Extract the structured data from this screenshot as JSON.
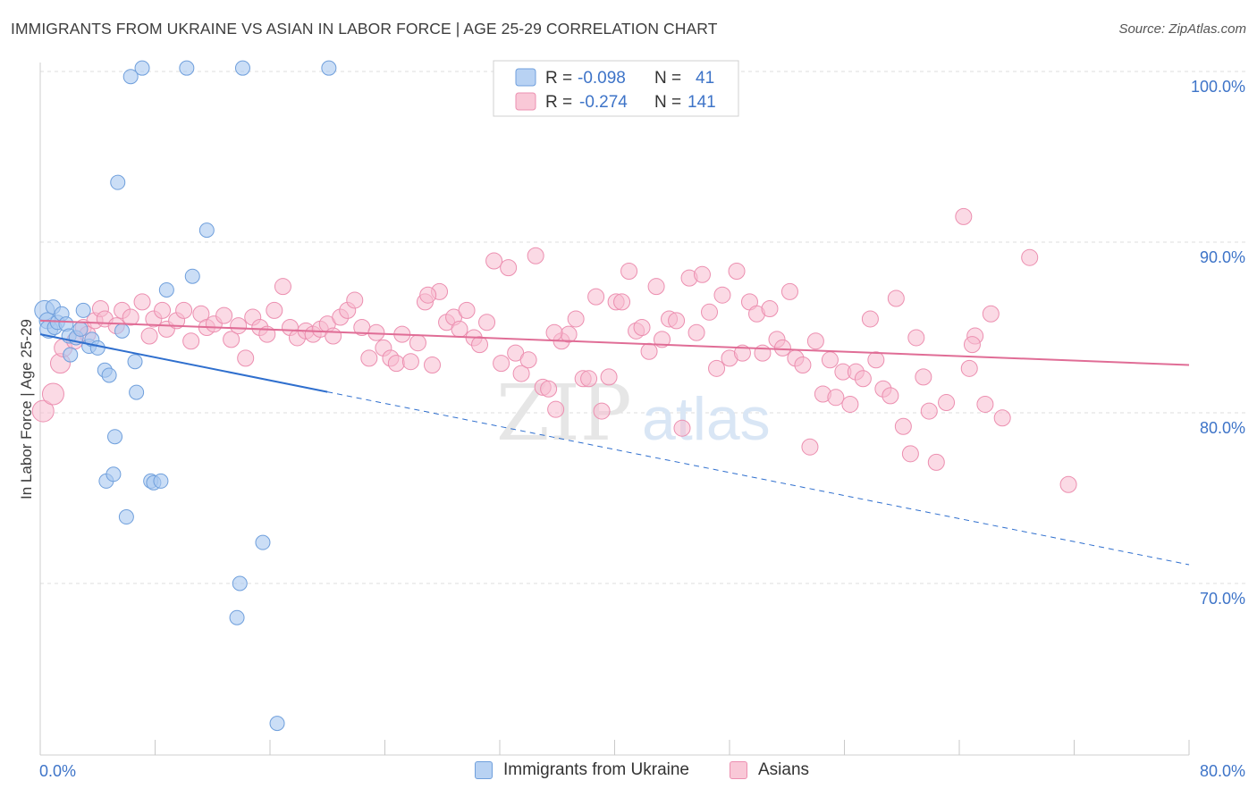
{
  "title": "IMMIGRANTS FROM UKRAINE VS ASIAN IN LABOR FORCE | AGE 25-29 CORRELATION CHART",
  "source": "Source: ZipAtlas.com",
  "watermark": {
    "zip": "ZIP",
    "atlas": "atlas"
  },
  "legend_top": {
    "rows": [
      {
        "r_label": "R =",
        "r_value": "-0.098",
        "n_label": "N =",
        "n_value": "41"
      },
      {
        "r_label": "R =",
        "r_value": "-0.274",
        "n_label": "N =",
        "n_value": "141"
      }
    ]
  },
  "legend_bottom": {
    "items": [
      "Immigrants from Ukraine",
      "Asians"
    ]
  },
  "chart_data": {
    "type": "scatter",
    "title": "IMMIGRANTS FROM UKRAINE VS ASIAN IN LABOR FORCE | AGE 25-29 CORRELATION CHART",
    "xlabel": "",
    "ylabel": "In Labor Force | Age 25-29",
    "xlim": [
      0,
      80
    ],
    "ylim": [
      61.5,
      102.5
    ],
    "x_tick_labels": [
      "0.0%",
      "80.0%"
    ],
    "y_ticks": [
      70,
      80,
      90,
      100
    ],
    "y_tick_labels": [
      "70.0%",
      "80.0%",
      "90.0%",
      "100.0%"
    ],
    "grid": true,
    "legend_placement": "top-center",
    "colors": {
      "ukraine_fill": "#a9c8f0",
      "ukraine_stroke": "#6f9fdc",
      "ukraine_line": "#2f6fce",
      "asian_fill": "#f7bcd0",
      "asian_stroke": "#ec8fb0",
      "asian_line": "#e06d96",
      "tick_text": "#3e74c8",
      "grid": "#dcdcdc"
    },
    "series": [
      {
        "name": "Immigrants from Ukraine",
        "r": -0.098,
        "n": 41,
        "trend": {
          "x0": 0,
          "y0": 84.6,
          "x_solid_end": 20,
          "x1": 80,
          "y1": 71.1
        },
        "points": [
          [
            0.3,
            86.0,
            11
          ],
          [
            0.5,
            85.4,
            9
          ],
          [
            0.6,
            84.9,
            10
          ],
          [
            0.9,
            86.2,
            8
          ],
          [
            1.0,
            85.0,
            8
          ],
          [
            1.2,
            85.3,
            8
          ],
          [
            1.5,
            85.8,
            8
          ],
          [
            1.8,
            85.2,
            8
          ],
          [
            2.0,
            84.5,
            8
          ],
          [
            2.1,
            83.4,
            8
          ],
          [
            2.5,
            84.4,
            8
          ],
          [
            2.8,
            84.9,
            8
          ],
          [
            3.0,
            86.0,
            8
          ],
          [
            3.4,
            83.9,
            8
          ],
          [
            3.6,
            84.3,
            8
          ],
          [
            4.0,
            83.8,
            8
          ],
          [
            4.5,
            82.5,
            8
          ],
          [
            4.6,
            76.0,
            8
          ],
          [
            4.8,
            82.2,
            8
          ],
          [
            5.1,
            76.4,
            8
          ],
          [
            5.2,
            78.6,
            8
          ],
          [
            5.4,
            93.5,
            8
          ],
          [
            5.7,
            84.8,
            8
          ],
          [
            6.0,
            73.9,
            8
          ],
          [
            6.3,
            99.7,
            8
          ],
          [
            6.6,
            83.0,
            8
          ],
          [
            6.7,
            81.2,
            8
          ],
          [
            7.1,
            100.2,
            8
          ],
          [
            7.7,
            76.0,
            8
          ],
          [
            7.9,
            75.9,
            8
          ],
          [
            8.4,
            76.0,
            8
          ],
          [
            8.8,
            87.2,
            8
          ],
          [
            10.2,
            100.2,
            8
          ],
          [
            10.6,
            88.0,
            8
          ],
          [
            11.6,
            90.7,
            8
          ],
          [
            13.7,
            68.0,
            8
          ],
          [
            13.9,
            70.0,
            8
          ],
          [
            14.1,
            100.2,
            8
          ],
          [
            15.5,
            72.4,
            8
          ],
          [
            16.5,
            61.8,
            8
          ],
          [
            20.1,
            100.2,
            8
          ]
        ]
      },
      {
        "name": "Asians",
        "r": -0.274,
        "n": 141,
        "trend": {
          "x0": 0,
          "y0": 85.4,
          "x1": 80,
          "y1": 82.8
        },
        "points": [
          [
            0.2,
            80.1,
            12
          ],
          [
            0.9,
            81.1,
            12
          ],
          [
            1.4,
            82.9,
            11
          ],
          [
            1.6,
            83.8,
            10
          ],
          [
            2.4,
            84.2,
            9
          ],
          [
            3.0,
            85.0,
            9
          ],
          [
            3.3,
            84.6,
            9
          ],
          [
            3.8,
            85.4,
            9
          ],
          [
            4.2,
            86.1,
            9
          ],
          [
            4.5,
            85.5,
            9
          ],
          [
            5.3,
            85.1,
            9
          ],
          [
            5.7,
            86.0,
            9
          ],
          [
            6.3,
            85.6,
            9
          ],
          [
            7.1,
            86.5,
            9
          ],
          [
            7.6,
            84.5,
            9
          ],
          [
            7.9,
            85.5,
            9
          ],
          [
            8.5,
            86.0,
            9
          ],
          [
            8.8,
            84.9,
            9
          ],
          [
            9.5,
            85.4,
            9
          ],
          [
            10.0,
            86.0,
            9
          ],
          [
            10.5,
            84.2,
            9
          ],
          [
            11.2,
            85.8,
            9
          ],
          [
            11.6,
            85.0,
            9
          ],
          [
            12.1,
            85.2,
            9
          ],
          [
            12.8,
            85.7,
            9
          ],
          [
            13.3,
            84.3,
            9
          ],
          [
            13.8,
            85.1,
            9
          ],
          [
            14.3,
            83.2,
            9
          ],
          [
            14.8,
            85.6,
            9
          ],
          [
            15.3,
            85.0,
            9
          ],
          [
            15.8,
            84.6,
            9
          ],
          [
            16.3,
            86.0,
            9
          ],
          [
            16.9,
            87.4,
            9
          ],
          [
            17.4,
            85.0,
            9
          ],
          [
            17.9,
            84.4,
            9
          ],
          [
            18.5,
            84.8,
            9
          ],
          [
            19.0,
            84.6,
            9
          ],
          [
            19.5,
            84.9,
            9
          ],
          [
            20.0,
            85.2,
            9
          ],
          [
            20.4,
            84.5,
            9
          ],
          [
            20.9,
            85.6,
            9
          ],
          [
            21.4,
            86.0,
            9
          ],
          [
            21.9,
            86.6,
            9
          ],
          [
            22.4,
            85.0,
            9
          ],
          [
            22.9,
            83.2,
            9
          ],
          [
            23.4,
            84.7,
            9
          ],
          [
            23.9,
            83.8,
            9
          ],
          [
            24.4,
            83.2,
            9
          ],
          [
            24.8,
            82.9,
            9
          ],
          [
            25.2,
            84.6,
            9
          ],
          [
            25.8,
            83.0,
            9
          ],
          [
            26.3,
            84.1,
            9
          ],
          [
            26.8,
            86.5,
            9
          ],
          [
            27.3,
            82.8,
            9
          ],
          [
            27.8,
            87.1,
            9
          ],
          [
            28.3,
            85.3,
            9
          ],
          [
            28.8,
            85.6,
            9
          ],
          [
            29.2,
            84.9,
            9
          ],
          [
            29.7,
            86.0,
            9
          ],
          [
            30.2,
            84.4,
            9
          ],
          [
            30.6,
            84.0,
            9
          ],
          [
            31.1,
            85.3,
            9
          ],
          [
            31.6,
            88.9,
            9
          ],
          [
            32.1,
            82.9,
            9
          ],
          [
            32.6,
            88.5,
            9
          ],
          [
            33.1,
            83.5,
            9
          ],
          [
            33.5,
            82.3,
            9
          ],
          [
            34.0,
            83.1,
            9
          ],
          [
            34.5,
            89.2,
            9
          ],
          [
            35.0,
            81.5,
            9
          ],
          [
            35.4,
            81.4,
            9
          ],
          [
            35.9,
            80.2,
            9
          ],
          [
            36.3,
            84.2,
            9
          ],
          [
            36.8,
            84.6,
            9
          ],
          [
            37.3,
            85.5,
            9
          ],
          [
            37.8,
            82.0,
            9
          ],
          [
            38.2,
            82.0,
            9
          ],
          [
            38.7,
            86.8,
            9
          ],
          [
            39.1,
            80.1,
            9
          ],
          [
            39.6,
            82.1,
            9
          ],
          [
            40.1,
            86.5,
            9
          ],
          [
            40.5,
            86.5,
            9
          ],
          [
            41.0,
            88.3,
            9
          ],
          [
            41.5,
            84.8,
            9
          ],
          [
            41.9,
            85.0,
            9
          ],
          [
            42.4,
            83.6,
            9
          ],
          [
            42.9,
            87.4,
            9
          ],
          [
            43.3,
            84.3,
            9
          ],
          [
            43.8,
            85.5,
            9
          ],
          [
            44.3,
            85.4,
            9
          ],
          [
            44.7,
            79.1,
            9
          ],
          [
            45.2,
            87.9,
            9
          ],
          [
            45.7,
            84.7,
            9
          ],
          [
            46.1,
            88.1,
            9
          ],
          [
            46.6,
            85.9,
            9
          ],
          [
            47.1,
            82.6,
            9
          ],
          [
            47.5,
            86.9,
            9
          ],
          [
            48.0,
            83.2,
            9
          ],
          [
            48.5,
            88.3,
            9
          ],
          [
            48.9,
            83.5,
            9
          ],
          [
            49.4,
            86.5,
            9
          ],
          [
            49.9,
            85.8,
            9
          ],
          [
            50.3,
            83.5,
            9
          ],
          [
            50.8,
            86.1,
            9
          ],
          [
            51.3,
            84.3,
            9
          ],
          [
            51.7,
            83.8,
            9
          ],
          [
            52.2,
            87.1,
            9
          ],
          [
            52.6,
            83.2,
            9
          ],
          [
            53.1,
            82.8,
            9
          ],
          [
            53.6,
            78.0,
            9
          ],
          [
            54.0,
            84.2,
            9
          ],
          [
            54.5,
            81.1,
            9
          ],
          [
            55.0,
            83.1,
            9
          ],
          [
            55.4,
            80.9,
            9
          ],
          [
            55.9,
            82.4,
            9
          ],
          [
            56.4,
            80.5,
            9
          ],
          [
            56.8,
            82.4,
            9
          ],
          [
            57.3,
            82.0,
            9
          ],
          [
            57.8,
            85.5,
            9
          ],
          [
            58.2,
            83.1,
            9
          ],
          [
            58.7,
            81.4,
            9
          ],
          [
            59.2,
            81.0,
            9
          ],
          [
            59.6,
            86.7,
            9
          ],
          [
            60.1,
            79.2,
            9
          ],
          [
            60.6,
            77.6,
            9
          ],
          [
            61.0,
            84.4,
            9
          ],
          [
            61.5,
            82.1,
            9
          ],
          [
            61.9,
            80.1,
            9
          ],
          [
            62.4,
            77.1,
            9
          ],
          [
            63.1,
            80.6,
            9
          ],
          [
            64.3,
            91.5,
            9
          ],
          [
            64.7,
            82.6,
            9
          ],
          [
            65.1,
            84.5,
            9
          ],
          [
            65.8,
            80.5,
            9
          ],
          [
            66.2,
            85.8,
            9
          ],
          [
            67.0,
            79.7,
            9
          ],
          [
            68.9,
            89.1,
            9
          ],
          [
            71.6,
            75.8,
            9
          ],
          [
            64.9,
            84.0,
            9
          ],
          [
            35.8,
            84.7,
            9
          ],
          [
            27.0,
            86.9,
            9
          ]
        ]
      }
    ]
  }
}
